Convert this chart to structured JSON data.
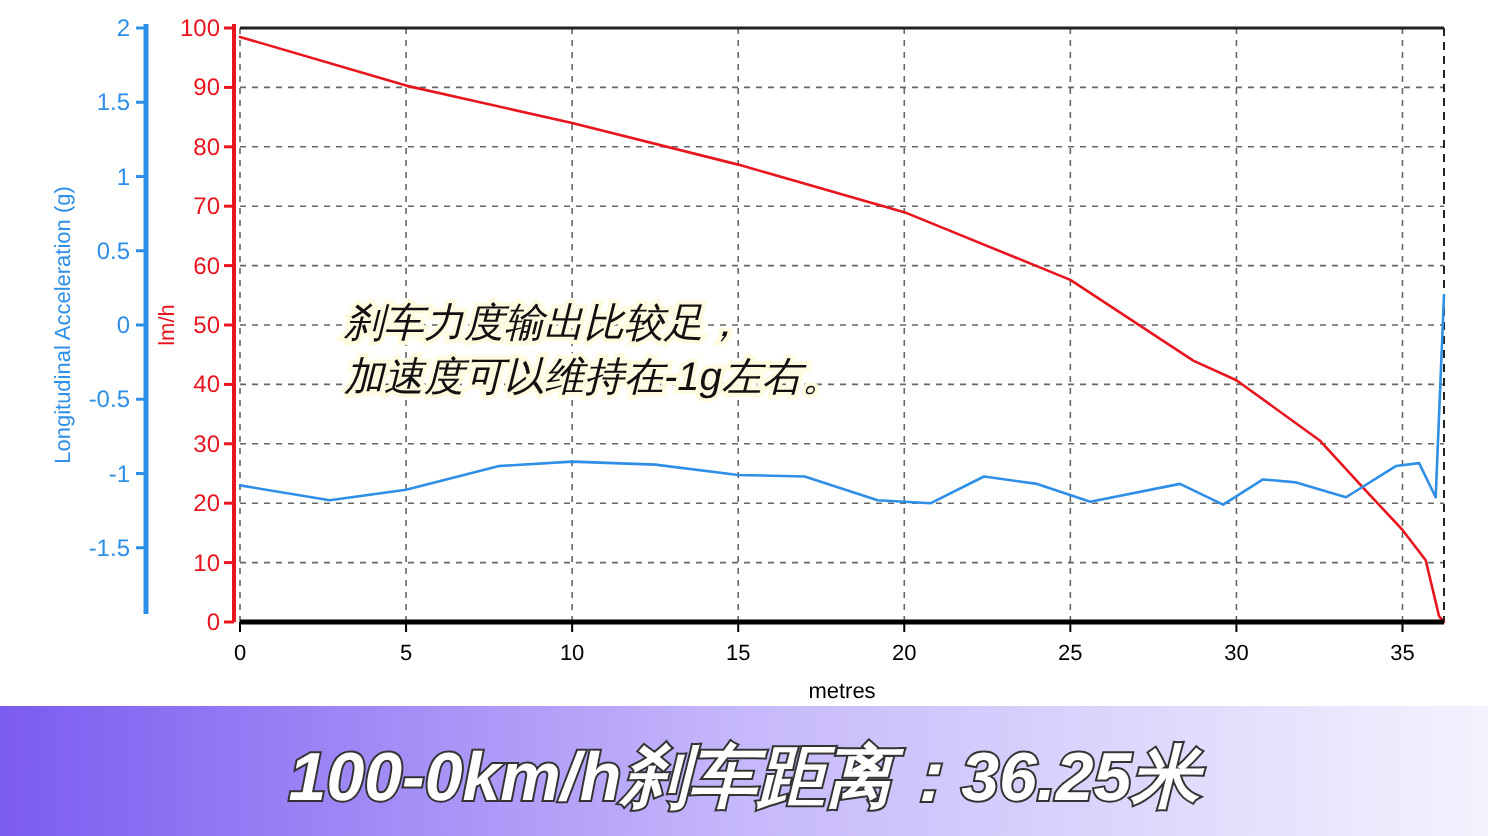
{
  "chart_data": {
    "type": "line",
    "title": "100-0km/h刹车距离：36.25米",
    "xlabel": "metres",
    "ylabel": "lm/h",
    "y2label": "Longitudinal Acceleration (g)",
    "annotations": [
      "刹车力度输出比较足，",
      "加速度可以维持在-1g左右。"
    ],
    "xlim": [
      0,
      36.25
    ],
    "xticks": [
      0,
      5,
      10,
      15,
      20,
      25,
      30,
      35
    ],
    "ylim": [
      0,
      100
    ],
    "yticks": [
      0,
      10,
      20,
      30,
      40,
      50,
      60,
      70,
      80,
      90,
      100
    ],
    "y2lim": [
      -2,
      2
    ],
    "y2ticks": [
      -1.5,
      -1,
      -0.5,
      0,
      0.5,
      1,
      1.5,
      2
    ],
    "grid": true,
    "line_style": "solid",
    "marker": "none",
    "series": [
      {
        "color": "#e8141e",
        "x": [
          0,
          5,
          10,
          15,
          20,
          25,
          28.7,
          30,
          32.5,
          34,
          35,
          35.7,
          36.1,
          36.25
        ],
        "values": [
          98.5,
          90.3,
          84,
          77,
          69,
          57.6,
          44,
          40.7,
          30.6,
          21.5,
          15.5,
          10.4,
          1,
          0
        ]
      },
      {
        "color": "#2f8fe6",
        "axis": "y2",
        "x": [
          0,
          2.7,
          5,
          7.8,
          10,
          12.5,
          15,
          17,
          19.2,
          20.8,
          22.4,
          24,
          25.6,
          28.3,
          29.6,
          30.8,
          31.8,
          33.3,
          34.8,
          35.5,
          36,
          36.25
        ],
        "values": [
          -1.08,
          -1.18,
          -1.11,
          -0.95,
          -0.92,
          -0.94,
          -1.01,
          -1.02,
          -1.18,
          -1.2,
          -1.02,
          -1.07,
          -1.19,
          -1.07,
          -1.21,
          -1.04,
          -1.06,
          -1.16,
          -0.95,
          -0.93,
          -1.16,
          0.2
        ]
      }
    ]
  }
}
